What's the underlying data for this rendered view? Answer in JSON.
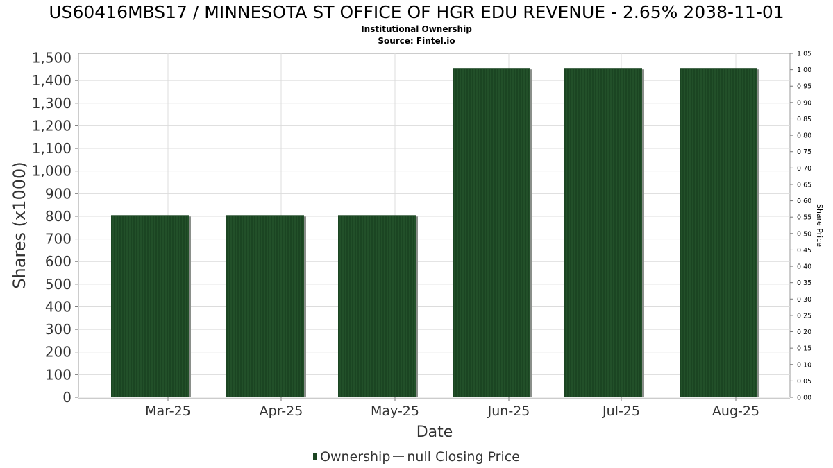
{
  "title": "US60416MBS17 / MINNESOTA ST OFFICE OF HGR EDU REVENUE - 2.65% 2038-11-01",
  "subtitle": "Institutional Ownership",
  "source": "Source: Fintel.io",
  "legend": {
    "ownership_label": "Ownership",
    "price_label": "null Closing Price"
  },
  "colors": {
    "bar": "#1b4522",
    "bar_stripe": "#2a5c30",
    "bar_shadow": "#8a8f8a",
    "grid": "#dcdcdc"
  },
  "chart_data": {
    "type": "bar",
    "title": "US60416MBS17 / MINNESOTA ST OFFICE OF HGR EDU REVENUE - 2.65% 2038-11-01",
    "subtitle": "Institutional Ownership",
    "xlabel": "Date",
    "ylabel": "Shares (x1000)",
    "y2label": "Share Price",
    "categories": [
      "Mar-25",
      "Apr-25",
      "May-25",
      "Jun-25",
      "Jul-25",
      "Aug-25"
    ],
    "series": [
      {
        "name": "Ownership",
        "values": [
          805,
          805,
          805,
          1455,
          1455,
          1455
        ]
      }
    ],
    "ylim": [
      0,
      1520
    ],
    "yticks": [
      "0",
      "100",
      "200",
      "300",
      "400",
      "500",
      "600",
      "700",
      "800",
      "900",
      "1,000",
      "1,100",
      "1,200",
      "1,300",
      "1,400",
      "1,500"
    ],
    "y2lim": [
      0,
      1.05
    ],
    "y2ticks": [
      "0.00",
      "0.05",
      "0.10",
      "0.15",
      "0.20",
      "0.25",
      "0.30",
      "0.35",
      "0.40",
      "0.45",
      "0.50",
      "0.55",
      "0.60",
      "0.65",
      "0.70",
      "0.75",
      "0.80",
      "0.85",
      "0.90",
      "0.95",
      "1.00",
      "1.05"
    ],
    "grid": true,
    "legend_position": "bottom-center"
  }
}
